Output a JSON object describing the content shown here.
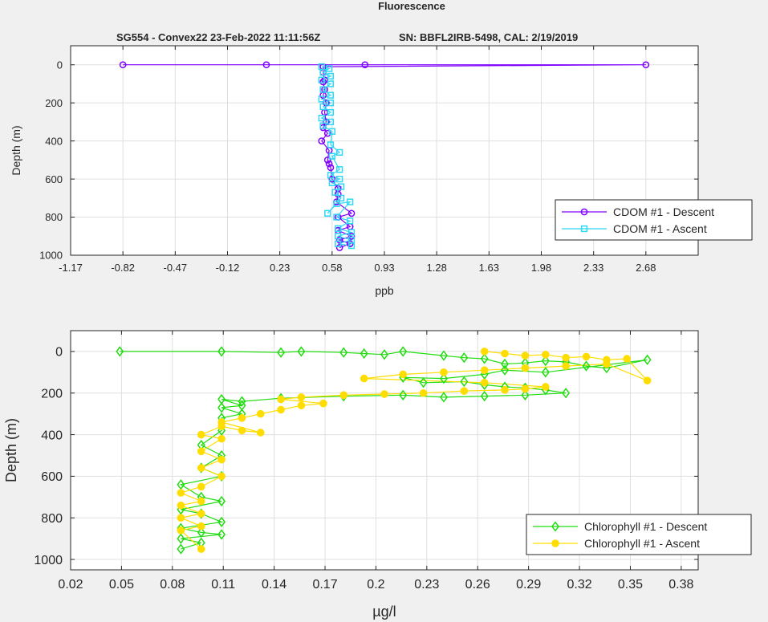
{
  "figure": {
    "title": "Fluorescence",
    "subtitle_left": "SG554 - Convex22 23-Feb-2022 11:11:56Z",
    "subtitle_right": "SN: BBFL2IRB-5498, CAL: 2/19/2019"
  },
  "chart_data": [
    {
      "type": "line",
      "ylabel": "Depth (m)",
      "xlabel": "ppb",
      "xlim": [
        -1.17,
        3.03
      ],
      "ylim": [
        1000,
        -100
      ],
      "xticks": [
        "-1.17",
        "-0.82",
        "-0.47",
        "-0.12",
        "0.23",
        "0.58",
        "0.93",
        "1.28",
        "1.63",
        "1.98",
        "2.33",
        "2.68"
      ],
      "yticks": [
        "0",
        "200",
        "400",
        "600",
        "800",
        "1000"
      ],
      "grid": true,
      "legend_position": "bottom-right",
      "series": [
        {
          "name": "CDOM #1 - Descent",
          "color": "#7f00ff",
          "marker": "circle",
          "x": [
            -0.82,
            0.14,
            0.8,
            2.68,
            0.52,
            0.52,
            0.53,
            0.52,
            0.53,
            0.52,
            0.54,
            0.53,
            0.54,
            0.52,
            0.55,
            0.51,
            0.56,
            0.55,
            0.56,
            0.57,
            0.58,
            0.62,
            0.62,
            0.61,
            0.71,
            0.62,
            0.7,
            0.62,
            0.71,
            0.63,
            0.7,
            0.63
          ],
          "y": [
            0,
            0,
            0,
            0,
            10,
            40,
            80,
            90,
            130,
            160,
            200,
            250,
            300,
            330,
            360,
            400,
            450,
            500,
            520,
            540,
            600,
            650,
            680,
            720,
            780,
            800,
            850,
            870,
            900,
            920,
            940,
            960
          ]
        },
        {
          "name": "CDOM #1 - Ascent",
          "color": "#2fd7f5",
          "marker": "square",
          "x": [
            0.51,
            0.56,
            0.52,
            0.57,
            0.51,
            0.57,
            0.52,
            0.57,
            0.51,
            0.57,
            0.52,
            0.57,
            0.51,
            0.57,
            0.52,
            0.58,
            0.57,
            0.63,
            0.58,
            0.63,
            0.57,
            0.63,
            0.58,
            0.64,
            0.6,
            0.64,
            0.55,
            0.61,
            0.7,
            0.61,
            0.7,
            0.62,
            0.71,
            0.62,
            0.71,
            0.62,
            0.71
          ],
          "y": [
            10,
            20,
            40,
            60,
            80,
            100,
            130,
            160,
            180,
            200,
            220,
            250,
            280,
            300,
            320,
            350,
            420,
            460,
            480,
            550,
            580,
            600,
            620,
            640,
            670,
            700,
            780,
            730,
            720,
            800,
            820,
            860,
            880,
            900,
            920,
            940,
            950
          ]
        }
      ]
    },
    {
      "type": "line",
      "ylabel": "Depth (m)",
      "xlabel": "µg/l",
      "xlim": [
        0.02,
        0.39
      ],
      "ylim": [
        1050,
        -100
      ],
      "xticks": [
        "0.02",
        "0.05",
        "0.08",
        "0.11",
        "0.14",
        "0.17",
        "0.2",
        "0.23",
        "0.26",
        "0.29",
        "0.32",
        "0.35",
        "0.38"
      ],
      "yticks": [
        "0",
        "200",
        "400",
        "600",
        "800",
        "1000"
      ],
      "grid": true,
      "legend_position": "bottom-right",
      "series": [
        {
          "name": "Chlorophyll #1 - Descent",
          "color": "#22dd11",
          "marker": "diamond",
          "x": [
            0.049,
            0.109,
            0.144,
            0.156,
            0.181,
            0.193,
            0.205,
            0.216,
            0.24,
            0.252,
            0.264,
            0.276,
            0.288,
            0.3,
            0.312,
            0.324,
            0.336,
            0.36,
            0.3,
            0.276,
            0.264,
            0.24,
            0.216,
            0.228,
            0.252,
            0.264,
            0.276,
            0.288,
            0.3,
            0.312,
            0.288,
            0.264,
            0.24,
            0.216,
            0.181,
            0.144,
            0.121,
            0.109,
            0.121,
            0.109,
            0.121,
            0.109,
            0.109,
            0.097,
            0.109,
            0.097,
            0.109,
            0.085,
            0.097,
            0.109,
            0.085,
            0.097,
            0.109,
            0.085,
            0.097,
            0.109,
            0.085,
            0.097,
            0.085
          ],
          "y": [
            0,
            0,
            5,
            0,
            5,
            10,
            15,
            0,
            20,
            30,
            35,
            60,
            55,
            45,
            50,
            70,
            80,
            40,
            100,
            90,
            110,
            130,
            125,
            150,
            145,
            160,
            170,
            175,
            185,
            200,
            210,
            215,
            220,
            210,
            215,
            225,
            240,
            230,
            260,
            270,
            300,
            320,
            380,
            450,
            500,
            560,
            600,
            640,
            700,
            720,
            760,
            780,
            820,
            850,
            870,
            880,
            900,
            920,
            950
          ]
        },
        {
          "name": "Chlorophyll #1 - Ascent",
          "color": "#ffdd00",
          "marker": "circle",
          "x": [
            0.264,
            0.276,
            0.288,
            0.3,
            0.312,
            0.324,
            0.336,
            0.348,
            0.36,
            0.336,
            0.312,
            0.288,
            0.264,
            0.24,
            0.216,
            0.193,
            0.264,
            0.3,
            0.288,
            0.276,
            0.252,
            0.228,
            0.205,
            0.181,
            0.156,
            0.144,
            0.169,
            0.156,
            0.144,
            0.132,
            0.121,
            0.109,
            0.132,
            0.121,
            0.109,
            0.097,
            0.109,
            0.097,
            0.109,
            0.097,
            0.109,
            0.097,
            0.085,
            0.097,
            0.085,
            0.097,
            0.085,
            0.097,
            0.085,
            0.097
          ],
          "y": [
            0,
            10,
            20,
            15,
            30,
            25,
            40,
            35,
            140,
            60,
            70,
            80,
            90,
            100,
            110,
            130,
            150,
            170,
            180,
            185,
            190,
            200,
            205,
            210,
            220,
            230,
            250,
            260,
            280,
            300,
            320,
            340,
            390,
            380,
            360,
            400,
            420,
            480,
            520,
            560,
            600,
            650,
            680,
            720,
            740,
            780,
            800,
            840,
            860,
            950
          ]
        }
      ]
    }
  ]
}
